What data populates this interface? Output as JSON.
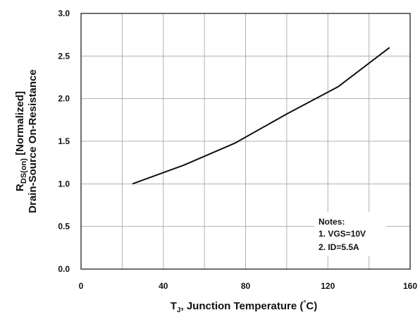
{
  "chart_data": {
    "type": "line",
    "xlabel": {
      "prefix": "T",
      "sub": "J",
      "text": ", Junction Temperature (",
      "sup": "°",
      "unit": "C)"
    },
    "ylabel": {
      "line1_prefix": "R",
      "line1_sub": "DS(on)",
      "line1_text": " [Normalized]",
      "line2": "Drain-Source On-Resistance"
    },
    "xlim": [
      0,
      160
    ],
    "ylim": [
      0.0,
      3.0
    ],
    "x_ticks": [
      0,
      40,
      80,
      120,
      160
    ],
    "x_tick_labels": [
      "0",
      "40",
      "80",
      "120",
      "160"
    ],
    "y_ticks": [
      0.0,
      0.5,
      1.0,
      1.5,
      2.0,
      2.5,
      3.0
    ],
    "y_tick_labels": [
      "0.0",
      "0.5",
      "1.0",
      "1.5",
      "2.0",
      "2.5",
      "3.0"
    ],
    "x_grid": [
      0,
      20,
      40,
      60,
      80,
      100,
      120,
      140,
      160
    ],
    "y_grid": [
      0.0,
      0.5,
      1.0,
      1.5,
      2.0,
      2.5,
      3.0
    ],
    "grid": true,
    "series": [
      {
        "x": [
          25,
          50,
          75,
          100,
          125,
          150
        ],
        "y": [
          1.0,
          1.22,
          1.48,
          1.82,
          2.14,
          2.6
        ]
      }
    ],
    "notes": {
      "title": "Notes:",
      "lines": [
        "1. VGS=10V",
        "2. ID=5.5A"
      ]
    },
    "colors": {
      "line": "#111111",
      "grid": "#b0b0b0",
      "frame": "#111111"
    }
  }
}
